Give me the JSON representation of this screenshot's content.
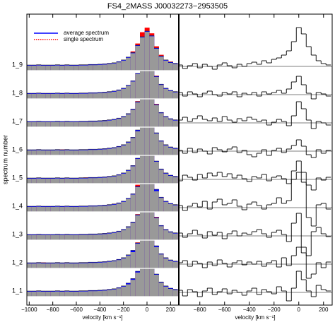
{
  "chart_data": [
    {
      "type": "step",
      "title": "FS4_2MASS J00032273−2953505",
      "xlabel": "velocity [km s⁻¹]",
      "ylabel": "spectrum number",
      "categories": [
        "1_1",
        "1_2",
        "1_3",
        "1_4",
        "1_5",
        "1_6",
        "1_7",
        "1_8",
        "1_9"
      ],
      "x": [
        -1000,
        -960,
        -920,
        -880,
        -840,
        -800,
        -760,
        -720,
        -680,
        -640,
        -600,
        -560,
        -520,
        -480,
        -440,
        -400,
        -360,
        -320,
        -280,
        -240,
        -200,
        -160,
        -120,
        -80,
        -40,
        0,
        40,
        80,
        120,
        160,
        200,
        240
      ],
      "xlim": [
        -1020,
        270
      ],
      "xticks": [
        {
          "value": -1000,
          "label": "−1000"
        },
        {
          "value": -800,
          "label": "−800"
        },
        {
          "value": -600,
          "label": "−600"
        },
        {
          "value": -400,
          "label": "−400"
        },
        {
          "value": -200,
          "label": "−200"
        },
        0,
        200
      ],
      "series": [
        {
          "name": "average spectrum",
          "color": "#0000ff",
          "values": [
            1.0,
            1.0,
            1.05,
            1.0,
            1.0,
            1.0,
            1.05,
            1.0,
            1.05,
            1.0,
            1.0,
            1.05,
            1.05,
            1.1,
            1.1,
            1.15,
            1.2,
            1.3,
            1.4,
            1.6,
            1.9,
            2.4,
            3.2,
            4.5,
            6.0,
            7.0,
            6.2,
            4.0,
            2.6,
            1.9,
            1.5,
            1.3
          ]
        },
        {
          "name": "single spectrum",
          "color": "#ff0000",
          "values": [
            [
              1.0,
              1.0,
              1.05,
              1.0,
              1.0,
              1.0,
              1.05,
              1.0,
              1.05,
              1.0,
              1.0,
              1.05,
              1.05,
              1.1,
              1.1,
              1.15,
              1.2,
              1.3,
              1.4,
              1.6,
              1.9,
              2.3,
              3.1,
              4.4,
              5.9,
              7.0,
              6.1,
              4.0,
              2.6,
              1.9,
              1.5,
              1.3
            ],
            [
              1.0,
              1.0,
              1.05,
              1.05,
              1.0,
              1.0,
              1.05,
              1.0,
              1.05,
              1.0,
              1.0,
              1.05,
              1.05,
              1.1,
              1.1,
              1.15,
              1.2,
              1.3,
              1.4,
              1.6,
              1.9,
              2.4,
              3.0,
              4.6,
              6.1,
              7.1,
              6.0,
              3.9,
              2.6,
              1.9,
              1.5,
              1.3
            ],
            [
              1.0,
              1.0,
              1.05,
              1.0,
              1.0,
              1.0,
              1.05,
              1.0,
              1.05,
              1.0,
              1.0,
              1.05,
              1.05,
              1.1,
              1.1,
              1.15,
              1.2,
              1.3,
              1.4,
              1.6,
              1.9,
              2.4,
              3.2,
              4.6,
              6.2,
              7.0,
              6.3,
              4.1,
              2.6,
              1.9,
              1.5,
              1.3
            ],
            [
              1.0,
              1.0,
              1.05,
              1.0,
              1.0,
              1.0,
              1.05,
              1.0,
              1.05,
              1.0,
              1.0,
              1.05,
              1.05,
              1.1,
              1.1,
              1.15,
              1.2,
              1.3,
              1.45,
              1.6,
              1.9,
              2.4,
              3.2,
              4.8,
              6.4,
              7.3,
              6.0,
              3.8,
              2.6,
              1.9,
              1.5,
              1.3
            ],
            [
              1.0,
              1.0,
              1.05,
              1.0,
              1.0,
              1.0,
              1.05,
              1.0,
              1.05,
              1.0,
              1.0,
              1.05,
              1.1,
              1.1,
              1.1,
              1.15,
              1.2,
              1.3,
              1.4,
              1.6,
              1.9,
              2.4,
              3.2,
              4.5,
              6.2,
              7.2,
              6.3,
              4.0,
              2.6,
              1.9,
              1.5,
              1.3
            ],
            [
              1.0,
              1.0,
              1.05,
              1.0,
              1.0,
              1.0,
              1.05,
              1.05,
              1.05,
              1.0,
              1.0,
              1.05,
              1.05,
              1.1,
              1.1,
              1.15,
              1.2,
              1.3,
              1.4,
              1.6,
              1.9,
              2.4,
              3.2,
              4.4,
              6.1,
              7.0,
              6.2,
              4.0,
              2.6,
              1.9,
              1.5,
              1.3
            ],
            [
              1.0,
              1.0,
              1.05,
              1.0,
              1.0,
              1.0,
              1.05,
              1.0,
              1.05,
              1.0,
              1.0,
              1.05,
              1.05,
              1.1,
              1.1,
              1.15,
              1.2,
              1.3,
              1.4,
              1.6,
              1.9,
              2.4,
              3.2,
              4.6,
              6.3,
              7.3,
              6.4,
              4.1,
              2.6,
              1.9,
              1.5,
              1.3
            ],
            [
              1.0,
              1.0,
              1.05,
              1.0,
              1.0,
              1.0,
              1.05,
              1.0,
              1.05,
              1.0,
              1.0,
              1.05,
              1.05,
              1.1,
              1.1,
              1.15,
              1.2,
              1.3,
              1.4,
              1.6,
              1.9,
              2.4,
              3.2,
              4.5,
              6.1,
              7.2,
              6.3,
              4.1,
              2.6,
              1.9,
              1.5,
              1.3
            ],
            [
              1.0,
              1.0,
              1.05,
              1.0,
              1.0,
              1.0,
              1.05,
              1.0,
              1.05,
              1.0,
              1.0,
              1.05,
              1.05,
              1.1,
              1.1,
              1.15,
              1.2,
              1.3,
              1.4,
              1.6,
              1.9,
              2.4,
              3.4,
              4.8,
              6.8,
              7.6,
              6.6,
              4.3,
              2.8,
              1.9,
              1.6,
              1.3
            ]
          ]
        }
      ],
      "legend": "upper left"
    },
    {
      "type": "step",
      "xlabel": "velocity [km s⁻¹]",
      "x": [
        -960,
        -920,
        -880,
        -840,
        -800,
        -760,
        -720,
        -680,
        -640,
        -600,
        -560,
        -520,
        -480,
        -440,
        -400,
        -360,
        -320,
        -280,
        -240,
        -200,
        -160,
        -120,
        -80,
        -40,
        0,
        40,
        80,
        120,
        160,
        200,
        240
      ],
      "xlim": [
        -970,
        270
      ],
      "xticks": [
        {
          "value": -800,
          "label": "−800"
        },
        {
          "value": -600,
          "label": "−600"
        },
        {
          "value": -400,
          "label": "−400"
        },
        {
          "value": -200,
          "label": "−200"
        },
        0,
        200
      ],
      "series": [
        {
          "color": "#000000",
          "values": [
            [
              0.3,
              -0.5,
              0.4,
              0.1,
              -0.6,
              0.2,
              0.6,
              -0.3,
              0.1,
              0.5,
              -0.2,
              0.3,
              0.0,
              -0.4,
              0.2,
              0.6,
              -0.3,
              0.4,
              0.1,
              -0.2,
              0.8,
              0.2,
              -1.2,
              0.6,
              3.0,
              1.8,
              0.2,
              -0.6,
              1.0,
              0.4,
              0.2
            ],
            [
              0.2,
              0.5,
              -0.3,
              0.4,
              0.1,
              -0.5,
              0.3,
              -0.2,
              0.6,
              0.1,
              -0.4,
              0.2,
              0.5,
              -0.1,
              0.3,
              0.0,
              0.4,
              -0.3,
              0.2,
              0.5,
              -0.4,
              0.9,
              -0.2,
              1.2,
              2.4,
              1.6,
              -2.0,
              -1.4,
              0.2,
              -0.5,
              0.3
            ],
            [
              0.4,
              -0.2,
              0.3,
              0.8,
              0.2,
              -0.3,
              0.6,
              0.1,
              0.5,
              -0.4,
              0.3,
              0.7,
              0.0,
              0.4,
              0.2,
              0.6,
              0.9,
              0.3,
              -0.2,
              0.5,
              0.8,
              0.2,
              -0.8,
              1.8,
              3.2,
              -1.6,
              -2.8,
              0.6,
              1.2,
              0.3,
              -0.1
            ],
            [
              0.3,
              -0.4,
              0.2,
              0.6,
              0.1,
              0.9,
              -0.2,
              0.8,
              1.2,
              0.4,
              0.6,
              1.1,
              0.2,
              -0.3,
              0.5,
              0.8,
              0.3,
              -0.2,
              0.4,
              0.6,
              1.4,
              0.6,
              1.0,
              4.0,
              5.0,
              3.6,
              -1.4,
              -2.6,
              0.4,
              0.6,
              -0.2
            ],
            [
              -0.2,
              0.6,
              0.3,
              -0.1,
              0.7,
              0.2,
              0.9,
              0.5,
              1.0,
              0.4,
              0.8,
              0.2,
              0.6,
              0.1,
              -0.3,
              0.4,
              0.2,
              0.7,
              -0.2,
              0.3,
              0.5,
              0.1,
              -0.6,
              1.2,
              2.6,
              1.0,
              -0.8,
              -1.5,
              0.2,
              -0.1,
              0.3
            ],
            [
              0.1,
              -0.3,
              0.4,
              -0.2,
              0.3,
              0.0,
              -0.4,
              0.5,
              0.2,
              -0.1,
              0.3,
              0.6,
              -0.2,
              0.1,
              -0.5,
              -0.8,
              -0.3,
              0.2,
              -0.6,
              0.1,
              0.4,
              -0.2,
              0.3,
              0.8,
              1.6,
              0.7,
              -0.5,
              -0.9,
              0.2,
              -0.3,
              0.1
            ],
            [
              0.4,
              0.8,
              0.2,
              0.6,
              1.0,
              0.5,
              0.3,
              0.7,
              0.2,
              0.9,
              0.4,
              0.1,
              0.6,
              0.3,
              0.8,
              0.5,
              0.2,
              0.4,
              -0.3,
              0.1,
              0.5,
              0.2,
              -0.4,
              1.0,
              3.0,
              2.0,
              0.4,
              -0.8,
              0.2,
              0.0,
              -0.3
            ],
            [
              0.3,
              -0.2,
              0.4,
              0.1,
              -0.3,
              0.2,
              0.5,
              0.0,
              -0.2,
              0.3,
              0.1,
              0.4,
              -0.3,
              0.2,
              0.0,
              0.3,
              -0.2,
              0.4,
              0.1,
              0.3,
              0.6,
              0.2,
              0.8,
              1.8,
              2.6,
              1.4,
              0.2,
              -0.6,
              0.3,
              0.1,
              -0.2
            ],
            [
              0.2,
              -0.3,
              0.1,
              0.4,
              -0.2,
              0.3,
              0.0,
              -0.4,
              0.2,
              0.5,
              0.1,
              -0.2,
              0.3,
              0.0,
              0.4,
              0.6,
              0.3,
              0.8,
              0.5,
              1.0,
              1.2,
              1.6,
              2.2,
              3.5,
              5.5,
              4.6,
              2.8,
              1.6,
              0.8,
              0.4,
              0.2
            ]
          ]
        }
      ]
    }
  ]
}
